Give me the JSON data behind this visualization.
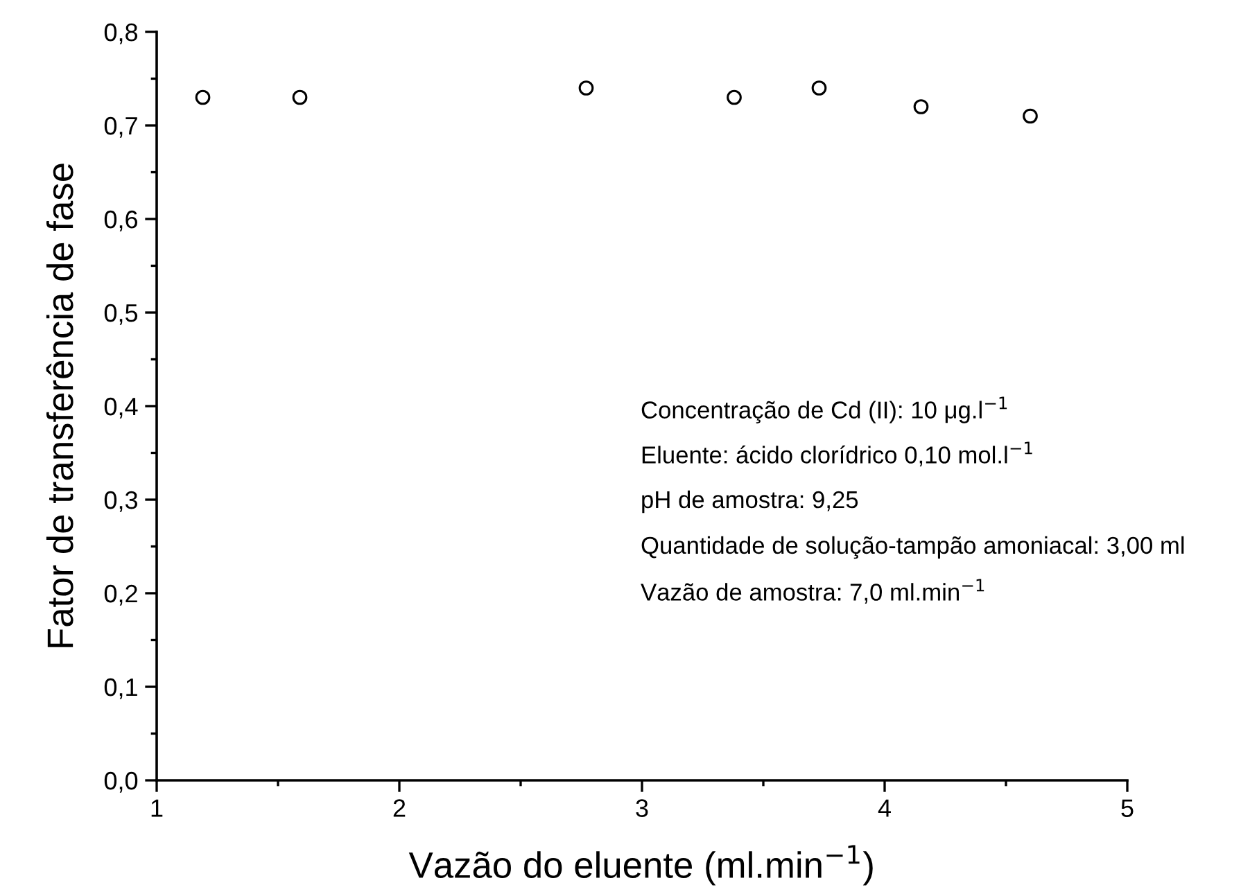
{
  "chart_data": {
    "type": "scatter",
    "xlabel": "Vazão do eluente (ml.min$^{−1}$)",
    "ylabel": "Fator de transferência de fase",
    "x": [
      1.19,
      1.59,
      2.77,
      3.38,
      3.73,
      4.15,
      4.6
    ],
    "values": [
      0.73,
      0.73,
      0.74,
      0.73,
      0.74,
      0.72,
      0.71
    ],
    "color": "#000000",
    "marker": "circle",
    "grid": false,
    "legend": false,
    "xlim": [
      1,
      5
    ],
    "xticks": [
      1,
      2,
      3,
      4,
      5
    ],
    "ylim": [
      0,
      0.8
    ],
    "yticks": [
      {
        "value": 0,
        "label": "0,0"
      },
      {
        "value": 0.1,
        "label": "0,1"
      },
      {
        "value": 0.2,
        "label": "0,2"
      },
      {
        "value": 0.3,
        "label": "0,3"
      },
      {
        "value": 0.4,
        "label": "0,4"
      },
      {
        "value": 0.5,
        "label": "0,5"
      },
      {
        "value": 0.6,
        "label": "0,6"
      },
      {
        "value": 0.7,
        "label": "0,7"
      },
      {
        "value": 0.8,
        "label": "0,8"
      }
    ],
    "annotations": [
      "Concentração de Cd (II): 10 μg.l$^{−1}$",
      "Eluente: ácido clorídrico 0,10 mol.l$^{−1}$",
      "pH de amostra: 9,25",
      "Quantidade de solução-tampão amoniacal: 3,00 ml",
      "Vazão de amostra: 7,0 ml.min$^{−1}$"
    ]
  }
}
